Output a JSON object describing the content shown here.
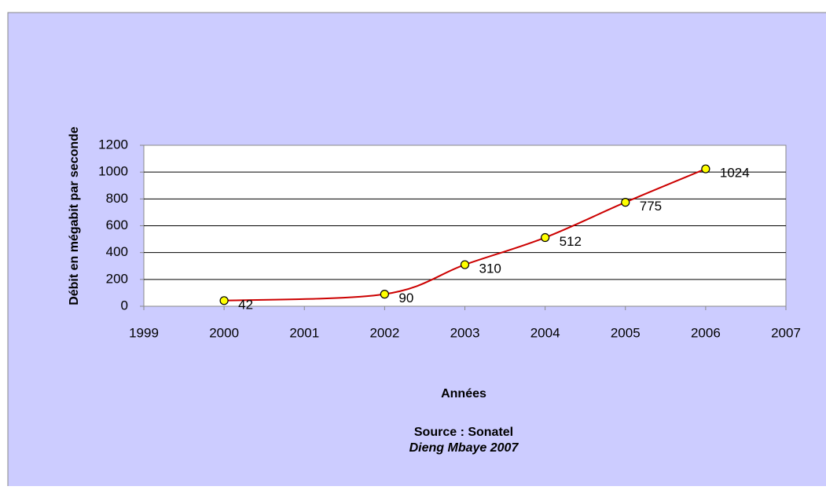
{
  "chart_data": {
    "type": "line",
    "x": [
      2000,
      2002,
      2003,
      2004,
      2005,
      2006
    ],
    "series": [
      {
        "name": "Débit",
        "color": "#cc0000",
        "marker_color": "#ffff00",
        "values": [
          42,
          90,
          310,
          512,
          775,
          1024
        ]
      }
    ],
    "xlim": [
      1999,
      2007
    ],
    "xticks": [
      1999,
      2000,
      2001,
      2002,
      2003,
      2004,
      2005,
      2006,
      2007
    ],
    "ylim": [
      0,
      1200
    ],
    "yticks": [
      0,
      200,
      400,
      600,
      800,
      1000,
      1200
    ],
    "xlabel": "Années",
    "ylabel": "Débit en mégabit par seconde",
    "source": "Source : Sonatel",
    "author": "Dieng Mbaye 2007",
    "grid": true
  }
}
